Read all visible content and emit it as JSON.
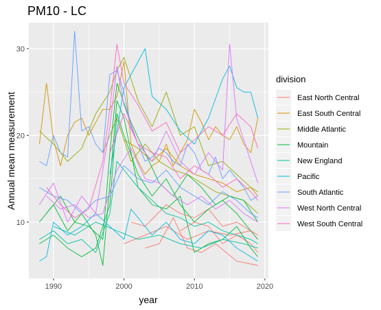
{
  "chart_data": {
    "type": "line",
    "title": "PM10 - LC",
    "xlabel": "year",
    "ylabel": "Annual mean measurement",
    "xlim": [
      1986.5,
      2020.5
    ],
    "ylim": [
      3.5,
      33.0
    ],
    "x_ticks": [
      1990,
      2000,
      2010,
      2020
    ],
    "y_ticks": [
      10,
      20,
      30
    ],
    "grid": true,
    "legend": {
      "title": "division",
      "position": "right"
    },
    "series": [
      {
        "name": "East North Central",
        "color": "#F8766D",
        "lines": [
          {
            "x": [
              2000,
              2003,
              2006,
              2009,
              2012,
              2015,
              2018,
              2019
            ],
            "y": [
              7.5,
              8.5,
              9.5,
              8.0,
              9.0,
              8.5,
              9.0,
              8.0
            ]
          },
          {
            "x": [
              2003,
              2005,
              2007,
              2009,
              2011,
              2013,
              2016,
              2019
            ],
            "y": [
              7.0,
              7.5,
              10.5,
              7.0,
              6.5,
              7.5,
              5.5,
              5.0
            ]
          },
          {
            "x": [
              2001,
              2003,
              2006,
              2008,
              2010,
              2012,
              2014,
              2016,
              2018,
              2019
            ],
            "y": [
              10.0,
              9.5,
              12.0,
              11.0,
              10.5,
              11.5,
              9.5,
              10.0,
              9.0,
              8.5
            ]
          },
          {
            "x": [
              2008,
              2010,
              2012,
              2014,
              2016,
              2018,
              2019
            ],
            "y": [
              9.0,
              10.0,
              9.5,
              7.5,
              8.5,
              7.5,
              6.5
            ]
          }
        ]
      },
      {
        "name": "East South Central",
        "color": "#D39200",
        "lines": [
          {
            "x": [
              1988,
              1989,
              1990,
              1991,
              1992,
              1993,
              1994,
              1995,
              1996,
              1997,
              1998,
              1999,
              2000,
              2001,
              2002,
              2003,
              2004,
              2005,
              2006,
              2007,
              2008,
              2009,
              2010,
              2011,
              2012,
              2013,
              2014,
              2015,
              2016,
              2017,
              2018,
              2019
            ],
            "y": [
              19.0,
              26.0,
              19.5,
              16.5,
              20.0,
              21.5,
              22.0,
              20.0,
              21.5,
              23.0,
              23.0,
              24.5,
              28.5,
              19.0,
              17.0,
              15.5,
              16.5,
              17.0,
              19.0,
              16.5,
              18.0,
              19.5,
              23.0,
              21.5,
              19.5,
              21.0,
              20.0,
              19.5,
              21.0,
              19.0,
              18.0,
              22.0
            ]
          },
          {
            "x": [
              2000,
              2002,
              2004,
              2006,
              2008,
              2010,
              2012,
              2014,
              2016,
              2018,
              2019
            ],
            "y": [
              19.5,
              18.5,
              17.0,
              18.5,
              16.5,
              15.5,
              15.0,
              14.5,
              13.5,
              14.0,
              13.0
            ]
          }
        ]
      },
      {
        "name": "Middle Atlantic",
        "color": "#93AA00",
        "lines": [
          {
            "x": [
              1988,
              1990,
              1992,
              1994,
              1996,
              1998,
              1999,
              2000,
              2002,
              2004,
              2006,
              2008,
              2010,
              2012,
              2014,
              2016,
              2018,
              2019
            ],
            "y": [
              20.5,
              19.0,
              17.0,
              18.5,
              22.5,
              25.0,
              27.5,
              29.0,
              24.0,
              21.0,
              25.0,
              20.0,
              21.0,
              16.5,
              17.0,
              15.5,
              14.0,
              13.5
            ]
          },
          {
            "x": [
              1997,
              1999,
              2001,
              2003,
              2005,
              2007,
              2009,
              2011,
              2013,
              2015,
              2017,
              2019
            ],
            "y": [
              18.0,
              22.0,
              17.0,
              19.0,
              17.0,
              16.0,
              15.5,
              14.5,
              13.5,
              13.0,
              12.5,
              11.0
            ]
          }
        ]
      },
      {
        "name": "Mountain",
        "color": "#00BA38",
        "lines": [
          {
            "x": [
              1988,
              1990,
              1992,
              1994,
              1996,
              1997,
              1998,
              1999,
              2000,
              2002,
              2004,
              2006,
              2008,
              2010,
              2012,
              2014,
              2016,
              2018,
              2019
            ],
            "y": [
              10.0,
              12.0,
              9.0,
              11.0,
              8.5,
              5.0,
              14.5,
              24.0,
              22.0,
              14.0,
              12.0,
              11.5,
              13.0,
              6.5,
              7.5,
              8.0,
              9.5,
              7.0,
              6.0
            ]
          },
          {
            "x": [
              1988,
              1990,
              1992,
              1994,
              1996,
              1998,
              1999,
              2000,
              2002,
              2004,
              2006,
              2008,
              2010,
              2012,
              2014,
              2016,
              2018,
              2019
            ],
            "y": [
              7.5,
              8.5,
              7.0,
              6.0,
              7.0,
              12.0,
              22.5,
              20.0,
              15.5,
              13.0,
              15.0,
              12.0,
              10.0,
              11.5,
              12.5,
              11.0,
              9.0,
              8.0
            ]
          },
          {
            "x": [
              1989,
              1991,
              1993,
              1995,
              1997,
              1998,
              1999,
              2001,
              2003,
              2005,
              2007,
              2009,
              2011,
              2013,
              2015,
              2017,
              2019
            ],
            "y": [
              11.0,
              13.0,
              10.0,
              9.5,
              8.0,
              18.0,
              26.0,
              21.5,
              18.0,
              14.5,
              13.0,
              15.5,
              14.0,
              12.0,
              13.0,
              12.5,
              10.0
            ]
          }
        ]
      },
      {
        "name": "New England",
        "color": "#00C19F",
        "lines": [
          {
            "x": [
              1988,
              1990,
              1992,
              1994,
              1996,
              1998,
              1999,
              2000,
              2002,
              2004,
              2006,
              2008,
              2010,
              2012,
              2014,
              2016,
              2018,
              2019
            ],
            "y": [
              8.0,
              9.0,
              7.5,
              8.0,
              6.5,
              11.0,
              17.0,
              16.0,
              14.0,
              12.5,
              11.0,
              10.5,
              9.5,
              10.0,
              9.0,
              8.5,
              8.0,
              7.5
            ]
          },
          {
            "x": [
              1990,
              1993,
              1996,
              1999,
              2002,
              2005,
              2008,
              2011,
              2014,
              2017,
              2019
            ],
            "y": [
              9.5,
              8.5,
              10.0,
              9.0,
              8.0,
              8.5,
              7.5,
              7.0,
              8.0,
              7.5,
              7.0
            ]
          }
        ]
      },
      {
        "name": "Pacific",
        "color": "#00B9E3",
        "lines": [
          {
            "x": [
              1988,
              1989,
              1990,
              1992,
              1994,
              1996,
              1998,
              2000,
              2001,
              2002,
              2004,
              2006,
              2008,
              2010,
              2012,
              2014,
              2016,
              2018,
              2019
            ],
            "y": [
              5.5,
              6.0,
              10.0,
              8.5,
              9.5,
              11.0,
              9.5,
              8.0,
              11.5,
              10.5,
              8.5,
              10.0,
              8.0,
              7.5,
              9.0,
              8.5,
              7.0,
              6.0,
              5.5
            ]
          },
          {
            "x": [
              1998,
              2000,
              2002,
              2003,
              2004,
              2006,
              2008,
              2010,
              2012,
              2014,
              2015,
              2016,
              2017,
              2018,
              2019
            ],
            "y": [
              15.5,
              25.5,
              28.5,
              30.0,
              24.5,
              23.0,
              20.5,
              19.0,
              22.0,
              26.5,
              28.0,
              25.5,
              25.0,
              25.0,
              22.0
            ]
          }
        ]
      },
      {
        "name": "South Atlantic",
        "color": "#619CFF",
        "lines": [
          {
            "x": [
              1988,
              1989,
              1990,
              1991,
              1992,
              1993,
              1994,
              1995,
              1996,
              1997,
              1998,
              1999,
              2000,
              2001,
              2002,
              2003,
              2004,
              2005,
              2006,
              2007,
              2008,
              2009,
              2010,
              2011,
              2012,
              2013,
              2014,
              2015,
              2016,
              2017,
              2018,
              2019
            ],
            "y": [
              17.0,
              16.5,
              20.0,
              18.0,
              17.5,
              32.0,
              20.5,
              21.0,
              19.0,
              18.0,
              27.0,
              27.5,
              25.0,
              21.0,
              19.0,
              17.0,
              17.5,
              18.5,
              18.0,
              17.0,
              16.5,
              19.0,
              18.0,
              16.0,
              15.5,
              17.5,
              15.0,
              16.0,
              15.0,
              14.0,
              12.5,
              13.0
            ]
          },
          {
            "x": [
              1988,
              1990,
              1992,
              1994,
              1996,
              1998,
              2000,
              2002,
              2004,
              2006,
              2008,
              2010,
              2012,
              2014,
              2016,
              2018,
              2019
            ],
            "y": [
              14.0,
              13.0,
              12.5,
              11.0,
              12.5,
              13.0,
              16.5,
              15.0,
              14.5,
              16.0,
              14.0,
              13.0,
              12.0,
              13.5,
              12.5,
              11.0,
              10.5
            ]
          }
        ]
      },
      {
        "name": "West North Central",
        "color": "#DB72FB",
        "lines": [
          {
            "x": [
              1988,
              1990,
              1992,
              1994,
              1996,
              1998,
              1999,
              2000,
              2002,
              2004,
              2006,
              2008,
              2010,
              2012,
              2014,
              2015,
              2016,
              2018,
              2019
            ],
            "y": [
              12.0,
              14.5,
              10.0,
              13.0,
              11.0,
              21.0,
              28.0,
              23.5,
              19.0,
              17.0,
              20.5,
              17.0,
              15.5,
              18.0,
              16.0,
              30.5,
              22.0,
              17.0,
              14.5
            ]
          },
          {
            "x": [
              1989,
              1991,
              1993,
              1995,
              1997,
              1999,
              2001,
              2003,
              2005,
              2007,
              2009,
              2011,
              2013,
              2015,
              2017,
              2019
            ],
            "y": [
              13.0,
              11.5,
              12.0,
              10.5,
              11.0,
              16.0,
              18.5,
              15.0,
              14.5,
              13.0,
              12.0,
              13.0,
              11.5,
              12.5,
              11.0,
              10.0
            ]
          }
        ]
      },
      {
        "name": "West South Central",
        "color": "#FF61C3",
        "lines": [
          {
            "x": [
              1989,
              1991,
              1993,
              1995,
              1997,
              1998,
              1999,
              2000,
              2002,
              2004,
              2006,
              2008,
              2010,
              2012,
              2014,
              2016,
              2018,
              2019
            ],
            "y": [
              14.0,
              12.0,
              10.5,
              11.5,
              17.0,
              23.0,
              30.5,
              26.0,
              23.5,
              20.5,
              21.5,
              18.0,
              19.5,
              21.0,
              20.0,
              22.5,
              21.0,
              18.5
            ]
          },
          {
            "x": [
              1998,
              2000,
              2002,
              2004,
              2006,
              2008,
              2010,
              2012,
              2014,
              2016,
              2018,
              2019
            ],
            "y": [
              18.0,
              22.5,
              19.0,
              18.0,
              17.5,
              15.0,
              16.5,
              15.5,
              14.0,
              15.0,
              13.5,
              12.5
            ]
          }
        ]
      }
    ]
  }
}
